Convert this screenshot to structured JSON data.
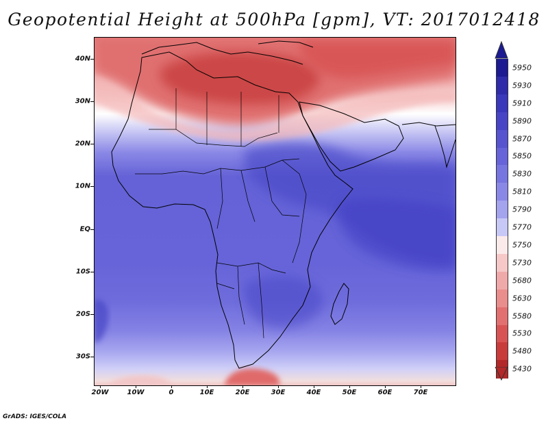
{
  "title": "Geopotential Height at 500hPa [gpm], VT: 2017012418",
  "credit": "GrADS: IGES/COLA",
  "lat_labels": [
    "40N",
    "30N",
    "20N",
    "10N",
    "EQ",
    "10S",
    "20S",
    "30S"
  ],
  "lon_labels": [
    "20W",
    "10W",
    "0",
    "10E",
    "20E",
    "30E",
    "40E",
    "50E",
    "60E",
    "70E"
  ],
  "colorbar": {
    "levels": [
      "5950",
      "5930",
      "5910",
      "5890",
      "5870",
      "5850",
      "5830",
      "5810",
      "5790",
      "5770",
      "5750",
      "5730",
      "5680",
      "5630",
      "5580",
      "5530",
      "5480",
      "5430"
    ],
    "colors": [
      "#1c1b91",
      "#2e2ca8",
      "#3a38bb",
      "#4745c6",
      "#5654cf",
      "#6664d8",
      "#7775df",
      "#8a88e6",
      "#a4a3ee",
      "#c8c8f6",
      "#fbeaea",
      "#f6c8c8",
      "#f0a9a9",
      "#ea8d8d",
      "#e27070",
      "#d85454",
      "#c93c3c",
      "#b32828"
    ]
  },
  "field": {
    "variable": "Geopotential Height",
    "level": "500hPa",
    "units": "gpm",
    "valid_time": "2017012418"
  }
}
